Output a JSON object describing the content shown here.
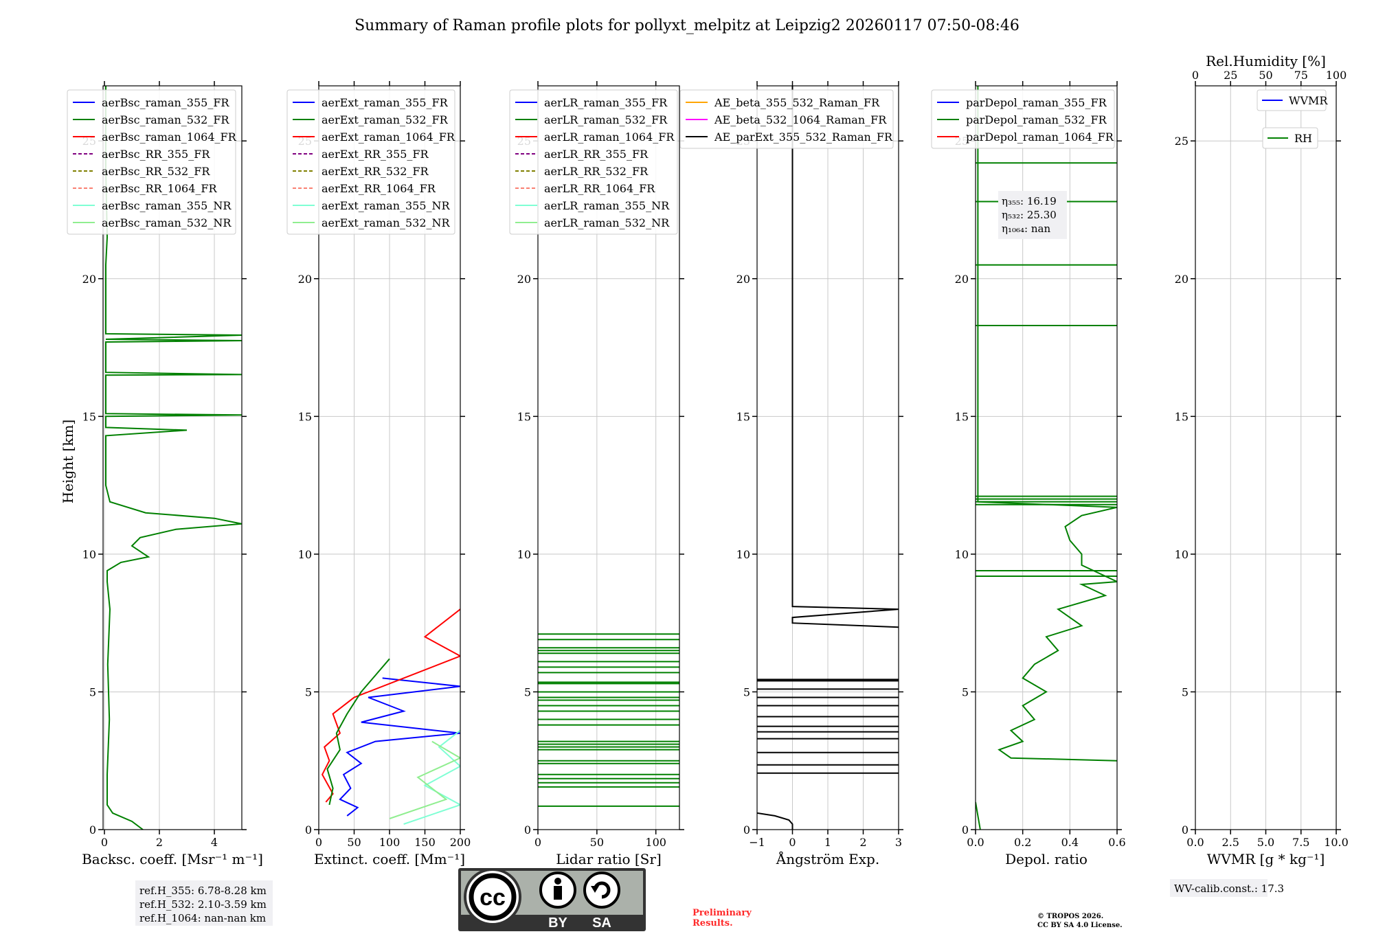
{
  "title": "Summary of Raman profile plots for pollyxt_melpitz at Leipzig2 20260117 07:50-08:46",
  "ylabel": "Height [km]",
  "chart_data": [
    {
      "id": "bsc",
      "type": "line",
      "xlabel": "Backsc. coeff. [Msr⁻¹ m⁻¹]",
      "xlim": [
        -0.05,
        5
      ],
      "ylim": [
        0,
        27
      ],
      "xticks": [
        0,
        2,
        4
      ],
      "xtick_labels": [
        "0",
        "2",
        "4"
      ],
      "yticks": [
        0,
        5,
        10,
        15,
        20,
        25
      ],
      "legend": [
        {
          "label": "aerBsc_raman_355_FR",
          "color": "#0000ff",
          "dash": false
        },
        {
          "label": "aerBsc_raman_532_FR",
          "color": "#008000",
          "dash": false
        },
        {
          "label": "aerBsc_raman_1064_FR",
          "color": "#ff0000",
          "dash": false
        },
        {
          "label": "aerBsc_RR_355_FR",
          "color": "#800080",
          "dash": true
        },
        {
          "label": "aerBsc_RR_532_FR",
          "color": "#808000",
          "dash": true
        },
        {
          "label": "aerBsc_RR_1064_FR",
          "color": "#fa8072",
          "dash": true
        },
        {
          "label": "aerBsc_raman_355_NR",
          "color": "#7fffd4",
          "dash": false
        },
        {
          "label": "aerBsc_raman_532_NR",
          "color": "#90ee90",
          "dash": false
        }
      ],
      "series": [
        {
          "name": "aerBsc_raman_532_FR",
          "color": "#008000",
          "points": [
            [
              1.4,
              0
            ],
            [
              1.0,
              0.3
            ],
            [
              0.3,
              0.6
            ],
            [
              0.1,
              0.9
            ],
            [
              0.1,
              2
            ],
            [
              0.18,
              4
            ],
            [
              0.12,
              6
            ],
            [
              0.2,
              8
            ],
            [
              0.1,
              9
            ],
            [
              0.1,
              9.4
            ],
            [
              0.6,
              9.7
            ],
            [
              1.6,
              9.9
            ],
            [
              1.0,
              10.3
            ],
            [
              1.3,
              10.6
            ],
            [
              2.6,
              10.9
            ],
            [
              5,
              11.1
            ],
            [
              4.0,
              11.3
            ],
            [
              1.5,
              11.5
            ],
            [
              0.2,
              11.9
            ],
            [
              0.05,
              12.5
            ],
            [
              0.05,
              14.3
            ],
            [
              3.0,
              14.5
            ],
            [
              0.05,
              14.6
            ],
            [
              0.05,
              15.0
            ],
            [
              5,
              15.05
            ],
            [
              0.05,
              15.1
            ],
            [
              0.05,
              16.5
            ],
            [
              5,
              16.52
            ],
            [
              0.05,
              16.6
            ],
            [
              0.05,
              17.7
            ],
            [
              5,
              17.75
            ],
            [
              0.05,
              17.8
            ],
            [
              5,
              17.95
            ],
            [
              0.05,
              18.0
            ],
            [
              0.05,
              20.5
            ],
            [
              0.1,
              21.5
            ],
            [
              0.05,
              24
            ],
            [
              0.05,
              27
            ]
          ]
        }
      ],
      "ref_box": [
        "ref.H_355: 6.78-8.28 km",
        "ref.H_532: 2.10-3.59 km",
        "ref.H_1064: nan-nan km"
      ]
    },
    {
      "id": "ext",
      "type": "line",
      "xlabel": "Extinct. coeff. [Mm⁻¹]",
      "xlim": [
        0,
        200
      ],
      "ylim": [
        0,
        27
      ],
      "xticks": [
        0,
        50,
        100,
        150,
        200
      ],
      "xtick_labels": [
        "0",
        "50",
        "100",
        "150",
        "200"
      ],
      "yticks": [
        0,
        5,
        10,
        15,
        20,
        25
      ],
      "legend": [
        {
          "label": "aerExt_raman_355_FR",
          "color": "#0000ff",
          "dash": false
        },
        {
          "label": "aerExt_raman_532_FR",
          "color": "#008000",
          "dash": false
        },
        {
          "label": "aerExt_raman_1064_FR",
          "color": "#ff0000",
          "dash": false
        },
        {
          "label": "aerExt_RR_355_FR",
          "color": "#800080",
          "dash": true
        },
        {
          "label": "aerExt_RR_532_FR",
          "color": "#808000",
          "dash": true
        },
        {
          "label": "aerExt_RR_1064_FR",
          "color": "#fa8072",
          "dash": true
        },
        {
          "label": "aerExt_raman_355_NR",
          "color": "#7fffd4",
          "dash": false
        },
        {
          "label": "aerExt_raman_532_NR",
          "color": "#90ee90",
          "dash": false
        }
      ],
      "series": [
        {
          "name": "aerExt_raman_355_FR",
          "color": "#0000ff",
          "points": [
            [
              40,
              0.5
            ],
            [
              55,
              0.8
            ],
            [
              30,
              1.1
            ],
            [
              45,
              1.5
            ],
            [
              35,
              2.0
            ],
            [
              60,
              2.4
            ],
            [
              40,
              2.8
            ],
            [
              80,
              3.2
            ],
            [
              200,
              3.5
            ],
            [
              60,
              3.9
            ],
            [
              120,
              4.3
            ],
            [
              70,
              4.8
            ],
            [
              200,
              5.2
            ],
            [
              90,
              5.5
            ]
          ]
        },
        {
          "name": "aerExt_raman_1064_FR",
          "color": "#ff0000",
          "points": [
            [
              10,
              1.0
            ],
            [
              20,
              1.3
            ],
            [
              5,
              2.0
            ],
            [
              15,
              2.5
            ],
            [
              8,
              3.0
            ],
            [
              30,
              3.5
            ],
            [
              20,
              4.2
            ],
            [
              50,
              4.8
            ],
            [
              120,
              5.5
            ],
            [
              200,
              6.3
            ],
            [
              150,
              7.0
            ],
            [
              200,
              8.0
            ]
          ]
        },
        {
          "name": "aerExt_raman_532_FR",
          "color": "#008000",
          "points": [
            [
              15,
              0.9
            ],
            [
              20,
              1.5
            ],
            [
              12,
              2.2
            ],
            [
              30,
              2.9
            ],
            [
              25,
              3.5
            ],
            [
              40,
              4.2
            ],
            [
              60,
              5.0
            ],
            [
              80,
              5.6
            ],
            [
              100,
              6.2
            ]
          ]
        },
        {
          "name": "aerExt_raman_355_NR",
          "color": "#7fffd4",
          "points": [
            [
              120,
              0.2
            ],
            [
              200,
              0.9
            ],
            [
              150,
              1.6
            ],
            [
              200,
              2.3
            ],
            [
              170,
              3.0
            ],
            [
              200,
              3.6
            ]
          ]
        },
        {
          "name": "aerExt_raman_532_NR",
          "color": "#90ee90",
          "points": [
            [
              100,
              0.4
            ],
            [
              180,
              1.1
            ],
            [
              140,
              1.9
            ],
            [
              200,
              2.6
            ],
            [
              160,
              3.2
            ]
          ]
        }
      ]
    },
    {
      "id": "lr",
      "type": "line",
      "xlabel": "Lidar ratio [Sr]",
      "xlim": [
        0,
        120
      ],
      "ylim": [
        0,
        27
      ],
      "xticks": [
        0,
        50,
        100
      ],
      "xtick_labels": [
        "0",
        "50",
        "100"
      ],
      "yticks": [
        0,
        5,
        10,
        15,
        20,
        25
      ],
      "legend": [
        {
          "label": "aerLR_raman_355_FR",
          "color": "#0000ff",
          "dash": false
        },
        {
          "label": "aerLR_raman_532_FR",
          "color": "#008000",
          "dash": false
        },
        {
          "label": "aerLR_raman_1064_FR",
          "color": "#ff0000",
          "dash": false
        },
        {
          "label": "aerLR_RR_355_FR",
          "color": "#800080",
          "dash": true
        },
        {
          "label": "aerLR_RR_532_FR",
          "color": "#808000",
          "dash": true
        },
        {
          "label": "aerLR_RR_1064_FR",
          "color": "#fa8072",
          "dash": true
        },
        {
          "label": "aerLR_raman_355_NR",
          "color": "#7fffd4",
          "dash": false
        },
        {
          "label": "aerLR_raman_532_NR",
          "color": "#90ee90",
          "dash": false
        }
      ],
      "hlines": {
        "color": "#008000",
        "x_from": 0,
        "x_to": 120,
        "y": [
          0.85,
          1.55,
          1.7,
          1.85,
          2.0,
          2.4,
          2.5,
          2.9,
          3.0,
          3.1,
          3.2,
          3.8,
          4.0,
          4.3,
          4.5,
          4.7,
          4.8,
          5.0,
          5.3,
          5.35,
          5.7,
          5.9,
          6.1,
          6.4,
          6.5,
          6.6,
          6.9,
          7.1
        ]
      }
    },
    {
      "id": "ae",
      "type": "line",
      "xlabel": "Ångström Exp.",
      "xlim": [
        -1,
        3
      ],
      "ylim": [
        0,
        27
      ],
      "xticks": [
        -1,
        0,
        1,
        2,
        3
      ],
      "xtick_labels": [
        "−1",
        "0",
        "1",
        "2",
        "3"
      ],
      "yticks": [
        0,
        5,
        10,
        15,
        20,
        25
      ],
      "legend": [
        {
          "label": "AE_beta_355_532_Raman_FR",
          "color": "#ffa500",
          "dash": false
        },
        {
          "label": "AE_beta_532_1064_Raman_FR",
          "color": "#ff00ff",
          "dash": false
        },
        {
          "label": "AE_parExt_355_532_Raman_FR",
          "color": "#000000",
          "dash": false
        }
      ],
      "series": [
        {
          "name": "AE_parExt_355_532_Raman_FR",
          "color": "#000000",
          "points": [
            [
              -1,
              0.6
            ],
            [
              -0.5,
              0.5
            ],
            [
              -0.1,
              0.35
            ],
            [
              0,
              0.2
            ],
            [
              0,
              0
            ]
          ]
        },
        {
          "name": "AE_parExt_355_532_Raman_FR_upper",
          "color": "#000000",
          "points": [
            [
              3,
              7.35
            ],
            [
              0,
              7.5
            ],
            [
              0,
              7.7
            ],
            [
              3,
              8.0
            ],
            [
              0,
              8.1
            ],
            [
              0,
              27
            ]
          ]
        }
      ],
      "hlines": {
        "color": "#000000",
        "x_from": -1,
        "x_to": 3,
        "y": [
          2.05,
          2.35,
          2.8,
          3.3,
          3.55,
          3.75,
          4.1,
          4.5,
          4.8,
          5.1,
          5.4,
          5.45
        ]
      }
    },
    {
      "id": "depol",
      "type": "line",
      "xlabel": "Depol. ratio",
      "xlim": [
        0,
        0.6
      ],
      "ylim": [
        0,
        27
      ],
      "xticks": [
        0,
        0.2,
        0.4,
        0.6
      ],
      "xtick_labels": [
        "0.0",
        "0.2",
        "0.4",
        "0.6"
      ],
      "yticks": [
        0,
        5,
        10,
        15,
        20,
        25
      ],
      "legend": [
        {
          "label": "parDepol_raman_355_FR",
          "color": "#0000ff",
          "dash": false
        },
        {
          "label": "parDepol_raman_532_FR",
          "color": "#008000",
          "dash": false
        },
        {
          "label": "parDepol_raman_1064_FR",
          "color": "#ff0000",
          "dash": false
        }
      ],
      "eta_box": [
        "η₃₅₅: 16.19",
        "η₅₃₂: 25.30",
        "η₁₀₆₄: nan"
      ],
      "series": [
        {
          "name": "parDepol_raman_532_FR",
          "color": "#008000",
          "points": [
            [
              0.6,
              2.5
            ],
            [
              0.15,
              2.6
            ],
            [
              0.1,
              2.9
            ],
            [
              0.2,
              3.2
            ],
            [
              0.15,
              3.6
            ],
            [
              0.25,
              4.0
            ],
            [
              0.2,
              4.5
            ],
            [
              0.3,
              5.0
            ],
            [
              0.2,
              5.5
            ],
            [
              0.25,
              6.0
            ],
            [
              0.35,
              6.5
            ],
            [
              0.3,
              7.0
            ],
            [
              0.45,
              7.4
            ],
            [
              0.35,
              8.0
            ],
            [
              0.55,
              8.5
            ],
            [
              0.45,
              8.9
            ],
            [
              0.6,
              9.0
            ],
            [
              0.45,
              9.6
            ],
            [
              0.45,
              10.0
            ],
            [
              0.4,
              10.5
            ],
            [
              0.38,
              11.0
            ],
            [
              0.45,
              11.4
            ],
            [
              0.6,
              11.7
            ],
            [
              0.01,
              11.9
            ],
            [
              0.01,
              27
            ]
          ]
        },
        {
          "name": "parDepol_raman_532_FR_low",
          "color": "#008000",
          "points": [
            [
              0.02,
              0
            ],
            [
              0.01,
              0.5
            ],
            [
              0.0,
              1.0
            ]
          ]
        }
      ],
      "hlines": {
        "color": "#008000",
        "x_from": 0,
        "x_to": 0.6,
        "y": [
          9.2,
          9.4,
          11.8,
          11.9,
          12.0,
          12.1,
          18.3,
          20.5,
          22.8,
          24.2
        ]
      }
    },
    {
      "id": "wv",
      "type": "line",
      "xlabel": "WVMR [g * kg⁻¹]",
      "xlim": [
        0,
        10
      ],
      "ylim": [
        0,
        27
      ],
      "xticks": [
        0,
        2.5,
        5,
        7.5,
        10
      ],
      "xtick_labels": [
        "0.0",
        "2.5",
        "5.0",
        "7.5",
        "10.0"
      ],
      "top_xlabel": "Rel.Humidity [%]",
      "top_xlim": [
        0,
        100
      ],
      "top_xticks": [
        0,
        25,
        50,
        75,
        100
      ],
      "top_xtick_labels": [
        "0",
        "25",
        "50",
        "75",
        "100"
      ],
      "yticks": [
        0,
        5,
        10,
        15,
        20,
        25
      ],
      "legend_wvmr": {
        "label": "WVMR",
        "color": "#0000ff"
      },
      "legend_rh": {
        "label": "RH",
        "color": "#008000"
      },
      "calib": "WV-calib.const.: 17.3"
    }
  ],
  "license": {
    "by": "BY",
    "sa": "SA"
  },
  "preliminary": [
    "Preliminary",
    "Results."
  ],
  "copyright": [
    "© TROPOS 2026.",
    "CC BY SA 4.0 License."
  ]
}
